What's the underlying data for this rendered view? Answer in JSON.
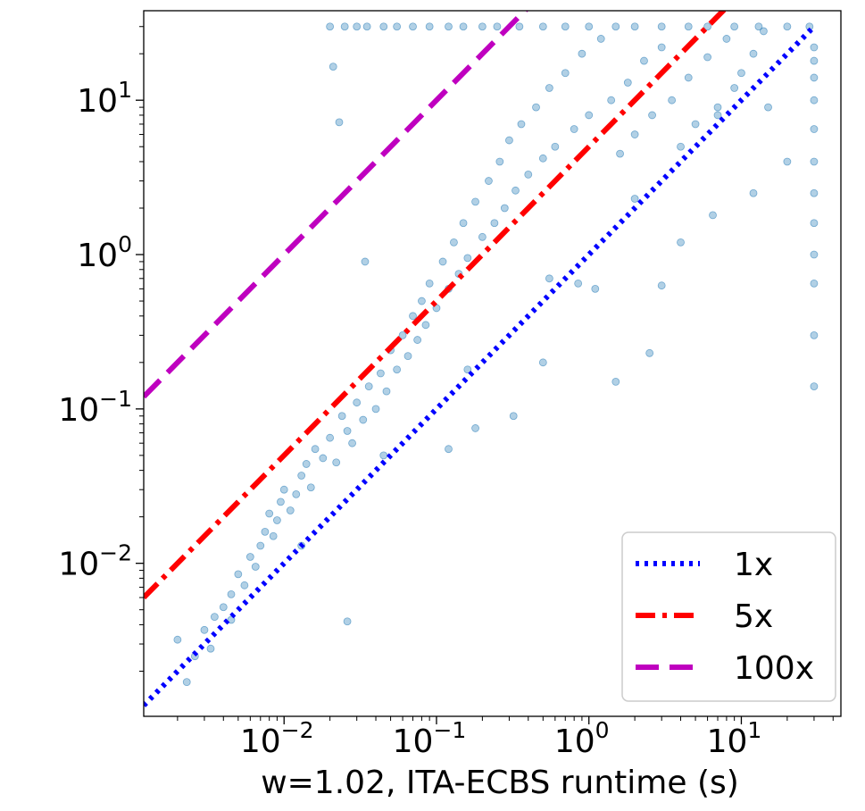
{
  "chart_data": {
    "type": "scatter",
    "title": "",
    "xlabel": "w=1.02, ITA-ECBS runtime (s)",
    "ylabel": "",
    "xscale": "log",
    "yscale": "log",
    "xlim": [
      0.0012,
      45
    ],
    "ylim": [
      0.00102,
      38
    ],
    "x_ticks": [
      {
        "value": 0.01,
        "base": "10",
        "exp": "−2"
      },
      {
        "value": 0.1,
        "base": "10",
        "exp": "−1"
      },
      {
        "value": 1,
        "base": "10",
        "exp": "0"
      },
      {
        "value": 10,
        "base": "10",
        "exp": "1"
      }
    ],
    "y_ticks": [
      {
        "value": 0.01,
        "base": "10",
        "exp": "−2"
      },
      {
        "value": 0.1,
        "base": "10",
        "exp": "−1"
      },
      {
        "value": 1,
        "base": "10",
        "exp": "0"
      },
      {
        "value": 10,
        "base": "10",
        "exp": "1"
      }
    ],
    "grid": false,
    "legend_position": "bottom-right",
    "timeout_value": 30,
    "scatter_color": "#1f77b4",
    "series": [
      {
        "name": "",
        "color": "#1f77b4",
        "points": [
          [
            0.002,
            0.0032
          ],
          [
            0.0023,
            0.0017
          ],
          [
            0.0026,
            0.0025
          ],
          [
            0.003,
            0.0037
          ],
          [
            0.0033,
            0.0028
          ],
          [
            0.0035,
            0.0045
          ],
          [
            0.004,
            0.0052
          ],
          [
            0.0045,
            0.0063
          ],
          [
            0.005,
            0.0085
          ],
          [
            0.0055,
            0.0072
          ],
          [
            0.006,
            0.011
          ],
          [
            0.0065,
            0.0095
          ],
          [
            0.007,
            0.013
          ],
          [
            0.0075,
            0.016
          ],
          [
            0.008,
            0.021
          ],
          [
            0.0085,
            0.015
          ],
          [
            0.009,
            0.019
          ],
          [
            0.0095,
            0.025
          ],
          [
            0.01,
            0.03
          ],
          [
            0.011,
            0.022
          ],
          [
            0.012,
            0.028
          ],
          [
            0.013,
            0.037
          ],
          [
            0.014,
            0.044
          ],
          [
            0.015,
            0.031
          ],
          [
            0.016,
            0.055
          ],
          [
            0.018,
            0.048
          ],
          [
            0.02,
            0.065
          ],
          [
            0.022,
            0.045
          ],
          [
            0.024,
            0.09
          ],
          [
            0.026,
            0.072
          ],
          [
            0.028,
            0.06
          ],
          [
            0.03,
            0.11
          ],
          [
            0.033,
            0.085
          ],
          [
            0.036,
            0.14
          ],
          [
            0.04,
            0.1
          ],
          [
            0.043,
            0.17
          ],
          [
            0.047,
            0.13
          ],
          [
            0.05,
            0.24
          ],
          [
            0.055,
            0.18
          ],
          [
            0.06,
            0.3
          ],
          [
            0.065,
            0.22
          ],
          [
            0.07,
            0.4
          ],
          [
            0.075,
            0.28
          ],
          [
            0.08,
            0.5
          ],
          [
            0.085,
            0.35
          ],
          [
            0.09,
            0.65
          ],
          [
            0.1,
            0.45
          ],
          [
            0.11,
            0.9
          ],
          [
            0.12,
            0.6
          ],
          [
            0.13,
            1.2
          ],
          [
            0.14,
            0.75
          ],
          [
            0.15,
            1.6
          ],
          [
            0.16,
            0.95
          ],
          [
            0.18,
            2.2
          ],
          [
            0.2,
            1.3
          ],
          [
            0.22,
            3.0
          ],
          [
            0.24,
            1.6
          ],
          [
            0.26,
            4.0
          ],
          [
            0.28,
            2.0
          ],
          [
            0.3,
            5.5
          ],
          [
            0.33,
            2.6
          ],
          [
            0.36,
            7.0
          ],
          [
            0.4,
            3.3
          ],
          [
            0.45,
            9.0
          ],
          [
            0.5,
            4.2
          ],
          [
            0.55,
            12.0
          ],
          [
            0.6,
            5.0
          ],
          [
            0.7,
            15.0
          ],
          [
            0.8,
            6.5
          ],
          [
            0.9,
            20.0
          ],
          [
            1.0,
            8.0
          ],
          [
            1.2,
            25.0
          ],
          [
            1.4,
            10.0
          ],
          [
            1.6,
            4.5
          ],
          [
            1.8,
            13.0
          ],
          [
            2.0,
            6.0
          ],
          [
            2.3,
            18.0
          ],
          [
            2.6,
            8.0
          ],
          [
            3.0,
            22.0
          ],
          [
            3.5,
            10.0
          ],
          [
            4.0,
            5.0
          ],
          [
            4.5,
            14.0
          ],
          [
            5.0,
            7.0
          ],
          [
            6.0,
            19.0
          ],
          [
            7.0,
            9.0
          ],
          [
            8.0,
            25.0
          ],
          [
            9.0,
            12.0
          ],
          [
            10.0,
            15.0
          ],
          [
            12.0,
            20.0
          ],
          [
            14.0,
            28.0
          ],
          [
            0.0045,
            0.0043
          ],
          [
            0.013,
            0.013
          ],
          [
            0.045,
            0.05
          ],
          [
            0.16,
            0.18
          ],
          [
            0.55,
            0.7
          ],
          [
            2.0,
            2.3
          ],
          [
            7.0,
            8.0
          ],
          [
            0.026,
            0.0042
          ],
          [
            0.32,
            0.09
          ],
          [
            1.1,
            0.6
          ],
          [
            0.12,
            0.055
          ],
          [
            0.5,
            0.2
          ],
          [
            0.85,
            0.65
          ],
          [
            3.0,
            0.63
          ],
          [
            2.5,
            0.23
          ],
          [
            1.5,
            0.15
          ],
          [
            4.0,
            1.2
          ],
          [
            6.5,
            1.8
          ],
          [
            12.0,
            2.5
          ],
          [
            20.0,
            4.0
          ],
          [
            0.021,
            16.5
          ],
          [
            0.023,
            7.2
          ],
          [
            0.034,
            0.9
          ],
          [
            0.18,
            0.075
          ],
          [
            15.0,
            9.0
          ]
        ]
      }
    ],
    "timeout_points_x": [
      0.02,
      0.025,
      0.03,
      0.035,
      0.045,
      0.055,
      0.07,
      0.09,
      0.12,
      0.15,
      0.2,
      0.25,
      0.35,
      0.5,
      0.7,
      1.0,
      1.5,
      2.0,
      3.0,
      4.5,
      6.0,
      9.0,
      13.0,
      20.0,
      28.0
    ],
    "timeout_points_y_at_x_30": [
      0.14,
      0.3,
      0.65,
      1.0,
      1.6,
      2.5,
      4.0,
      6.5,
      10.0,
      14.0,
      18.0,
      22.0
    ],
    "reference_lines": [
      {
        "name": "1x",
        "multiplier": 1,
        "color": "#0000ff",
        "style": "dotted"
      },
      {
        "name": "5x",
        "multiplier": 5,
        "color": "#ff0000",
        "style": "dashdot"
      },
      {
        "name": "100x",
        "multiplier": 100,
        "color": "#bf00bf",
        "style": "dashed"
      }
    ]
  }
}
